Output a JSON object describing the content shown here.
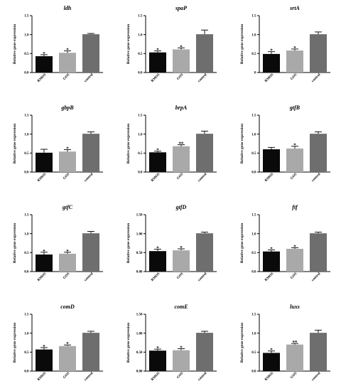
{
  "colors": {
    "RMOS": "#0a0a0a",
    "GOS": "#a9a9a9",
    "control": "#6e6e6e",
    "axis": "#000000"
  },
  "chart_data": [
    {
      "type": "bar",
      "title": "ldh",
      "ylabel": "Relative gene expression",
      "ylim": [
        0,
        1.5
      ],
      "yticks": [
        "0.0",
        "0.5",
        "1.0",
        "1.5"
      ],
      "categories": [
        "RMOS",
        "GOS",
        "control"
      ],
      "values": [
        0.43,
        0.52,
        1.01
      ],
      "errors": [
        0.04,
        0.05,
        0.02
      ],
      "significance": [
        "*",
        "*",
        ""
      ]
    },
    {
      "type": "bar",
      "title": "spaP",
      "ylabel": "Relative gene expression",
      "ylim": [
        0,
        1.5
      ],
      "yticks": [
        "0.0",
        "0.5",
        "1.0",
        "1.5"
      ],
      "categories": [
        "RMOS",
        "GOS",
        "control"
      ],
      "values": [
        0.53,
        0.61,
        1.01
      ],
      "errors": [
        0.04,
        0.04,
        0.11
      ],
      "significance": [
        "*",
        "*",
        ""
      ]
    },
    {
      "type": "bar",
      "title": "srtA",
      "ylabel": "Relative gene expression",
      "ylim": [
        0,
        1.5
      ],
      "yticks": [
        "0",
        "0.5",
        "1.0",
        "1.5"
      ],
      "categories": [
        "RMOS",
        "GOS",
        "control"
      ],
      "values": [
        0.49,
        0.58,
        1.01
      ],
      "errors": [
        0.06,
        0.04,
        0.06
      ],
      "significance": [
        "*",
        "*",
        ""
      ]
    },
    {
      "type": "bar",
      "title": "gbpB",
      "ylabel": "Relative gene expression",
      "ylim": [
        0,
        1.5
      ],
      "yticks": [
        "0.0",
        "0.5",
        "1.0",
        "1.5"
      ],
      "categories": [
        "RMOS",
        "GOS",
        "control"
      ],
      "values": [
        0.51,
        0.54,
        1.01
      ],
      "errors": [
        0.09,
        0.05,
        0.05
      ],
      "significance": [
        "",
        "*",
        ""
      ]
    },
    {
      "type": "bar",
      "title": "brpA",
      "ylabel": "Relative gene expression",
      "ylim": [
        0,
        1.5
      ],
      "yticks": [
        "0.0",
        "0.5",
        "1.0",
        "1.5"
      ],
      "categories": [
        "RMOS",
        "GOS",
        "control"
      ],
      "values": [
        0.52,
        0.68,
        1.01
      ],
      "errors": [
        0.03,
        0.04,
        0.07
      ],
      "significance": [
        "*",
        "**",
        ""
      ]
    },
    {
      "type": "bar",
      "title": "gtfB",
      "ylabel": "Relative gene expression",
      "ylim": [
        0,
        1.5
      ],
      "yticks": [
        "0.0",
        "0.5",
        "1.0",
        "1.5"
      ],
      "categories": [
        "RMOS",
        "GOS",
        "control"
      ],
      "values": [
        0.6,
        0.62,
        1.01
      ],
      "errors": [
        0.05,
        0.06,
        0.05
      ],
      "significance": [
        "",
        "*",
        ""
      ]
    },
    {
      "type": "bar",
      "title": "gtfC",
      "ylabel": "Relative gene expression",
      "ylim": [
        0,
        1.5
      ],
      "yticks": [
        "0.0",
        "0.5",
        "1.0",
        "1.5"
      ],
      "categories": [
        "RMOS",
        "GOS",
        "control"
      ],
      "values": [
        0.45,
        0.47,
        1.01
      ],
      "errors": [
        0.06,
        0.04,
        0.05
      ],
      "significance": [
        "*",
        "*",
        ""
      ]
    },
    {
      "type": "bar",
      "title": "gtfD",
      "ylabel": "Relative gene expression",
      "ylim": [
        0,
        1.5
      ],
      "yticks": [
        "0.00",
        "0.50",
        "1.00",
        "1.50"
      ],
      "categories": [
        "RMOS",
        "GOS",
        "control"
      ],
      "values": [
        0.54,
        0.56,
        1.01
      ],
      "errors": [
        0.05,
        0.04,
        0.03
      ],
      "significance": [
        "*",
        "*",
        ""
      ]
    },
    {
      "type": "bar",
      "title": "ftf",
      "ylabel": "Relative gene expression",
      "ylim": [
        0,
        1.5
      ],
      "yticks": [
        "0.0",
        "0.5",
        "1.0",
        "1.5"
      ],
      "categories": [
        "RMOS",
        "GOS",
        "control"
      ],
      "values": [
        0.53,
        0.6,
        1.01
      ],
      "errors": [
        0.04,
        0.03,
        0.03
      ],
      "significance": [
        "*",
        "*",
        ""
      ]
    },
    {
      "type": "bar",
      "title": "comD",
      "ylabel": "Relative gene expression",
      "ylim": [
        0,
        1.5
      ],
      "yticks": [
        "0.0",
        "0.5",
        "1.0",
        "1.5"
      ],
      "categories": [
        "RMOS",
        "GOS",
        "control"
      ],
      "values": [
        0.57,
        0.66,
        1.01
      ],
      "errors": [
        0.05,
        0.03,
        0.04
      ],
      "significance": [
        "*",
        "*",
        ""
      ]
    },
    {
      "type": "bar",
      "title": "comE",
      "ylabel": "Relative gene expression",
      "ylim": [
        0,
        1.5
      ],
      "yticks": [
        "0.00",
        "0.50",
        "1.00",
        "1.50"
      ],
      "categories": [
        "RMOS",
        "GOS",
        "control"
      ],
      "values": [
        0.54,
        0.55,
        1.01
      ],
      "errors": [
        0.04,
        0.04,
        0.04
      ],
      "significance": [
        "*",
        "*",
        ""
      ]
    },
    {
      "type": "bar",
      "title": "luxs",
      "ylabel": "Relative gene expression",
      "ylim": [
        0,
        1.5
      ],
      "yticks": [
        "0.0",
        "0.5",
        "1.0",
        "1.5"
      ],
      "categories": [
        "RMOS",
        "GOS",
        "control"
      ],
      "values": [
        0.48,
        0.7,
        1.01
      ],
      "errors": [
        0.05,
        0.03,
        0.07
      ],
      "significance": [
        "*",
        "**",
        ""
      ]
    }
  ]
}
